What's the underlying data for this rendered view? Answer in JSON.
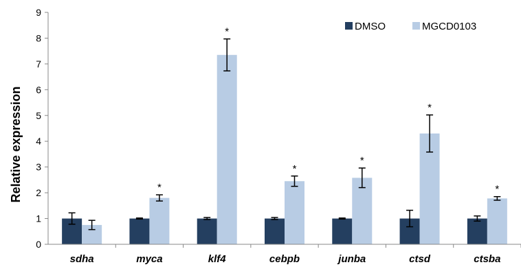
{
  "chart_data": {
    "type": "bar",
    "ylabel": "Relative expression",
    "xlabel": "",
    "ylim": [
      0,
      9
    ],
    "yticks": [
      0,
      1,
      2,
      3,
      4,
      5,
      6,
      7,
      8,
      9
    ],
    "categories": [
      "sdha",
      "myca",
      "klf4",
      "cebpb",
      "junba",
      "ctsd",
      "ctsba"
    ],
    "series": [
      {
        "name": "DMSO",
        "color": "#243f60",
        "values": [
          1.0,
          1.0,
          1.0,
          1.0,
          1.0,
          1.0,
          1.0
        ],
        "errors": [
          0.22,
          0.02,
          0.04,
          0.04,
          0.02,
          0.32,
          0.1
        ]
      },
      {
        "name": "MGCD0103",
        "color": "#b8cce4",
        "values": [
          0.75,
          1.8,
          7.35,
          2.45,
          2.58,
          4.3,
          1.78
        ],
        "errors": [
          0.18,
          0.12,
          0.62,
          0.2,
          0.38,
          0.72,
          0.07
        ]
      }
    ],
    "significance": [
      "",
      "*",
      "*",
      "*",
      "*",
      "*",
      "*"
    ],
    "legend": {
      "position": "top-right"
    },
    "grid": false
  }
}
